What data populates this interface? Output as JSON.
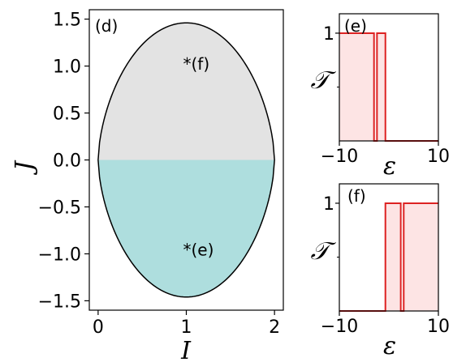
{
  "chart_data": [
    {
      "type": "area",
      "panel_label": "(d)",
      "xlabel": "I",
      "ylabel": "J",
      "xlim": [
        -0.1,
        2.1
      ],
      "ylim": [
        -1.6,
        1.6
      ],
      "xticks": [
        "0",
        "1",
        "2"
      ],
      "yticks": [
        "1.5",
        "1.0",
        "0.5",
        "0.0",
        "−0.5",
        "−1.0",
        "−1.5"
      ],
      "boundary": {
        "x_range": [
          0,
          2
        ],
        "peak_J": 1.46
      },
      "regions": [
        {
          "half": "upper",
          "color": "#e3e3e3"
        },
        {
          "half": "lower",
          "color": "#aedede"
        }
      ],
      "annotations": [
        {
          "text": "*(f)",
          "x": 1.0,
          "y": 1.03
        },
        {
          "text": "*(e)",
          "x": 1.0,
          "y": -0.95
        }
      ]
    },
    {
      "type": "area",
      "panel_label": "(e)",
      "xlabel": "ε",
      "ylabel": "𝒯",
      "xlim": [
        -10,
        10
      ],
      "ylim": [
        0,
        1.18
      ],
      "xticks": [
        "−10",
        "10"
      ],
      "yticks": [
        "1"
      ],
      "x": [
        -10,
        -3.0,
        -3.0,
        -2.4,
        -2.4,
        -0.7,
        -0.7,
        10
      ],
      "y": [
        1,
        1,
        0,
        0,
        1,
        1,
        0,
        0
      ],
      "line_color": "#dd2222",
      "fill_color": "#fde4e4"
    },
    {
      "type": "area",
      "panel_label": "(f)",
      "xlabel": "ε",
      "ylabel": "𝒯",
      "xlim": [
        -10,
        10
      ],
      "ylim": [
        0,
        1.18
      ],
      "xticks": [
        "−10",
        "10"
      ],
      "yticks": [
        "1"
      ],
      "x": [
        -10,
        -0.7,
        -0.7,
        2.4,
        2.4,
        3.0,
        3.0,
        10
      ],
      "y": [
        0,
        0,
        1,
        1,
        0,
        0,
        1,
        1
      ],
      "line_color": "#dd2222",
      "fill_color": "#fde4e4"
    }
  ]
}
